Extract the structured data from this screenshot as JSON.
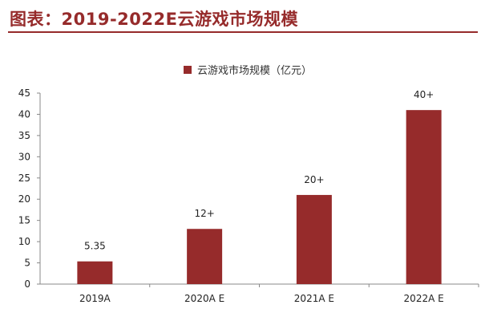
{
  "header": {
    "title": "图表：2019-2022E云游戏市场规模",
    "accent_color": "#962b2b"
  },
  "chart_data": {
    "type": "bar",
    "title": "",
    "xlabel": "",
    "ylabel": "",
    "categories": [
      "2019A",
      "2020A E",
      "2021A E",
      "2022A E"
    ],
    "series": [
      {
        "name": "云游戏市场规模（亿元）",
        "values": [
          5.35,
          13,
          21,
          41
        ],
        "data_labels": [
          "5.35",
          "12+",
          "20+",
          "40+"
        ],
        "color": "#962b2b"
      }
    ],
    "ylim": [
      0,
      45
    ],
    "yticks": [
      0,
      5,
      10,
      15,
      20,
      25,
      30,
      35,
      40,
      45
    ],
    "grid": false,
    "legend_position": "top-center"
  }
}
